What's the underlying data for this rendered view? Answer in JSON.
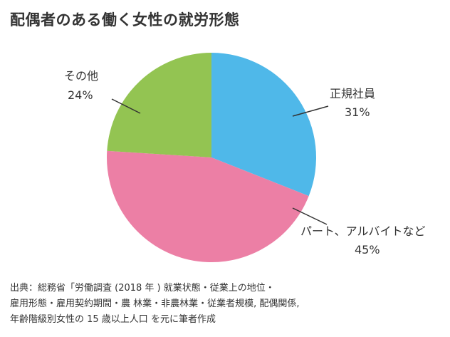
{
  "title": "配偶者のある働く女性の就労形態",
  "chart_data": {
    "type": "pie",
    "title": "配偶者のある働く女性の就労形態",
    "slices": [
      {
        "label": "正規社員",
        "value": 31,
        "value_label": "31%",
        "color": "#4fb8e9"
      },
      {
        "label": "パート、アルバイトなど",
        "value": 45,
        "value_label": "45%",
        "color": "#ec7fa5"
      },
      {
        "label": "その他",
        "value": 24,
        "value_label": "24%",
        "color": "#93c452"
      }
    ],
    "start": "12 o'clock",
    "direction": "clockwise",
    "legend": "none"
  },
  "source": {
    "lines": [
      "出典：総務省「労働調査 (2018 年 ) 就業状態・従業上の地位・",
      "雇用形態・雇用契約期間・農 林業・非農林業・従業者規模,  配偶関係,",
      "年齢階級別女性の 15 歳以上人口 を元に筆者作成"
    ]
  }
}
